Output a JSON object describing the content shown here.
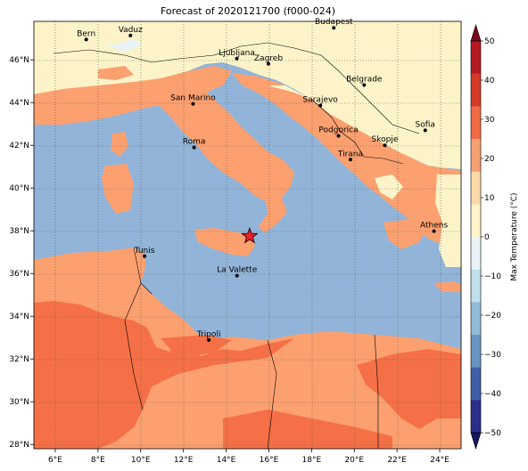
{
  "title": "Forecast of 2020121700 (f000-024)",
  "colorbar": {
    "label": "Max Temperature (°C)",
    "ticks": [
      "50",
      "40",
      "30",
      "20",
      "10",
      "0",
      "−10",
      "−20",
      "−30",
      "−40",
      "−50"
    ],
    "colors": [
      "#7a0a1c",
      "#b51a24",
      "#d63a2a",
      "#f06b45",
      "#f7a071",
      "#fcd9a8",
      "#fdf4c8",
      "#eaf4f8",
      "#bfe0ec",
      "#92bdd8",
      "#6894c2",
      "#3f60a8",
      "#2a2f8a",
      "#121660"
    ]
  },
  "axes": {
    "lon_labels": [
      "6°E",
      "8°E",
      "10°E",
      "12°E",
      "14°E",
      "16°E",
      "18°E",
      "20°E",
      "22°E",
      "24°E"
    ],
    "lat_labels": [
      "46°N",
      "44°N",
      "42°N",
      "40°N",
      "38°N",
      "36°N",
      "34°N",
      "32°N",
      "30°N",
      "28°N"
    ]
  },
  "colors": {
    "sea": "#92b4d8",
    "warm_land": "#fcf4c8",
    "mid_land": "#fca070",
    "hot_land": "#f57046",
    "lake": "#e8f2f8"
  },
  "cities": [
    {
      "name": "Bern",
      "lon": 7.45,
      "lat": 46.95
    },
    {
      "name": "Vaduz",
      "lon": 9.52,
      "lat": 47.14
    },
    {
      "name": "Budapest",
      "lon": 19.04,
      "lat": 47.5
    },
    {
      "name": "Ljubljana",
      "lon": 14.5,
      "lat": 46.06
    },
    {
      "name": "Zagreb",
      "lon": 15.98,
      "lat": 45.81
    },
    {
      "name": "Belgrade",
      "lon": 20.46,
      "lat": 44.82
    },
    {
      "name": "San Marino",
      "lon": 12.45,
      "lat": 43.94
    },
    {
      "name": "Sarajevo",
      "lon": 18.41,
      "lat": 43.86
    },
    {
      "name": "Sofia",
      "lon": 23.32,
      "lat": 42.7
    },
    {
      "name": "Roma",
      "lon": 12.5,
      "lat": 41.9
    },
    {
      "name": "Podgorica",
      "lon": 19.26,
      "lat": 42.44
    },
    {
      "name": "Skopje",
      "lon": 21.43,
      "lat": 42.0
    },
    {
      "name": "Tirana",
      "lon": 19.82,
      "lat": 41.33
    },
    {
      "name": "Athens",
      "lon": 23.73,
      "lat": 37.98
    },
    {
      "name": "Tunis",
      "lon": 10.18,
      "lat": 36.81
    },
    {
      "name": "La Valette",
      "lon": 14.51,
      "lat": 35.9
    },
    {
      "name": "Tripoli",
      "lon": 13.19,
      "lat": 32.89
    }
  ],
  "marker": {
    "name": "star",
    "lon": 15.1,
    "lat": 37.75,
    "color": "#e8202a"
  }
}
